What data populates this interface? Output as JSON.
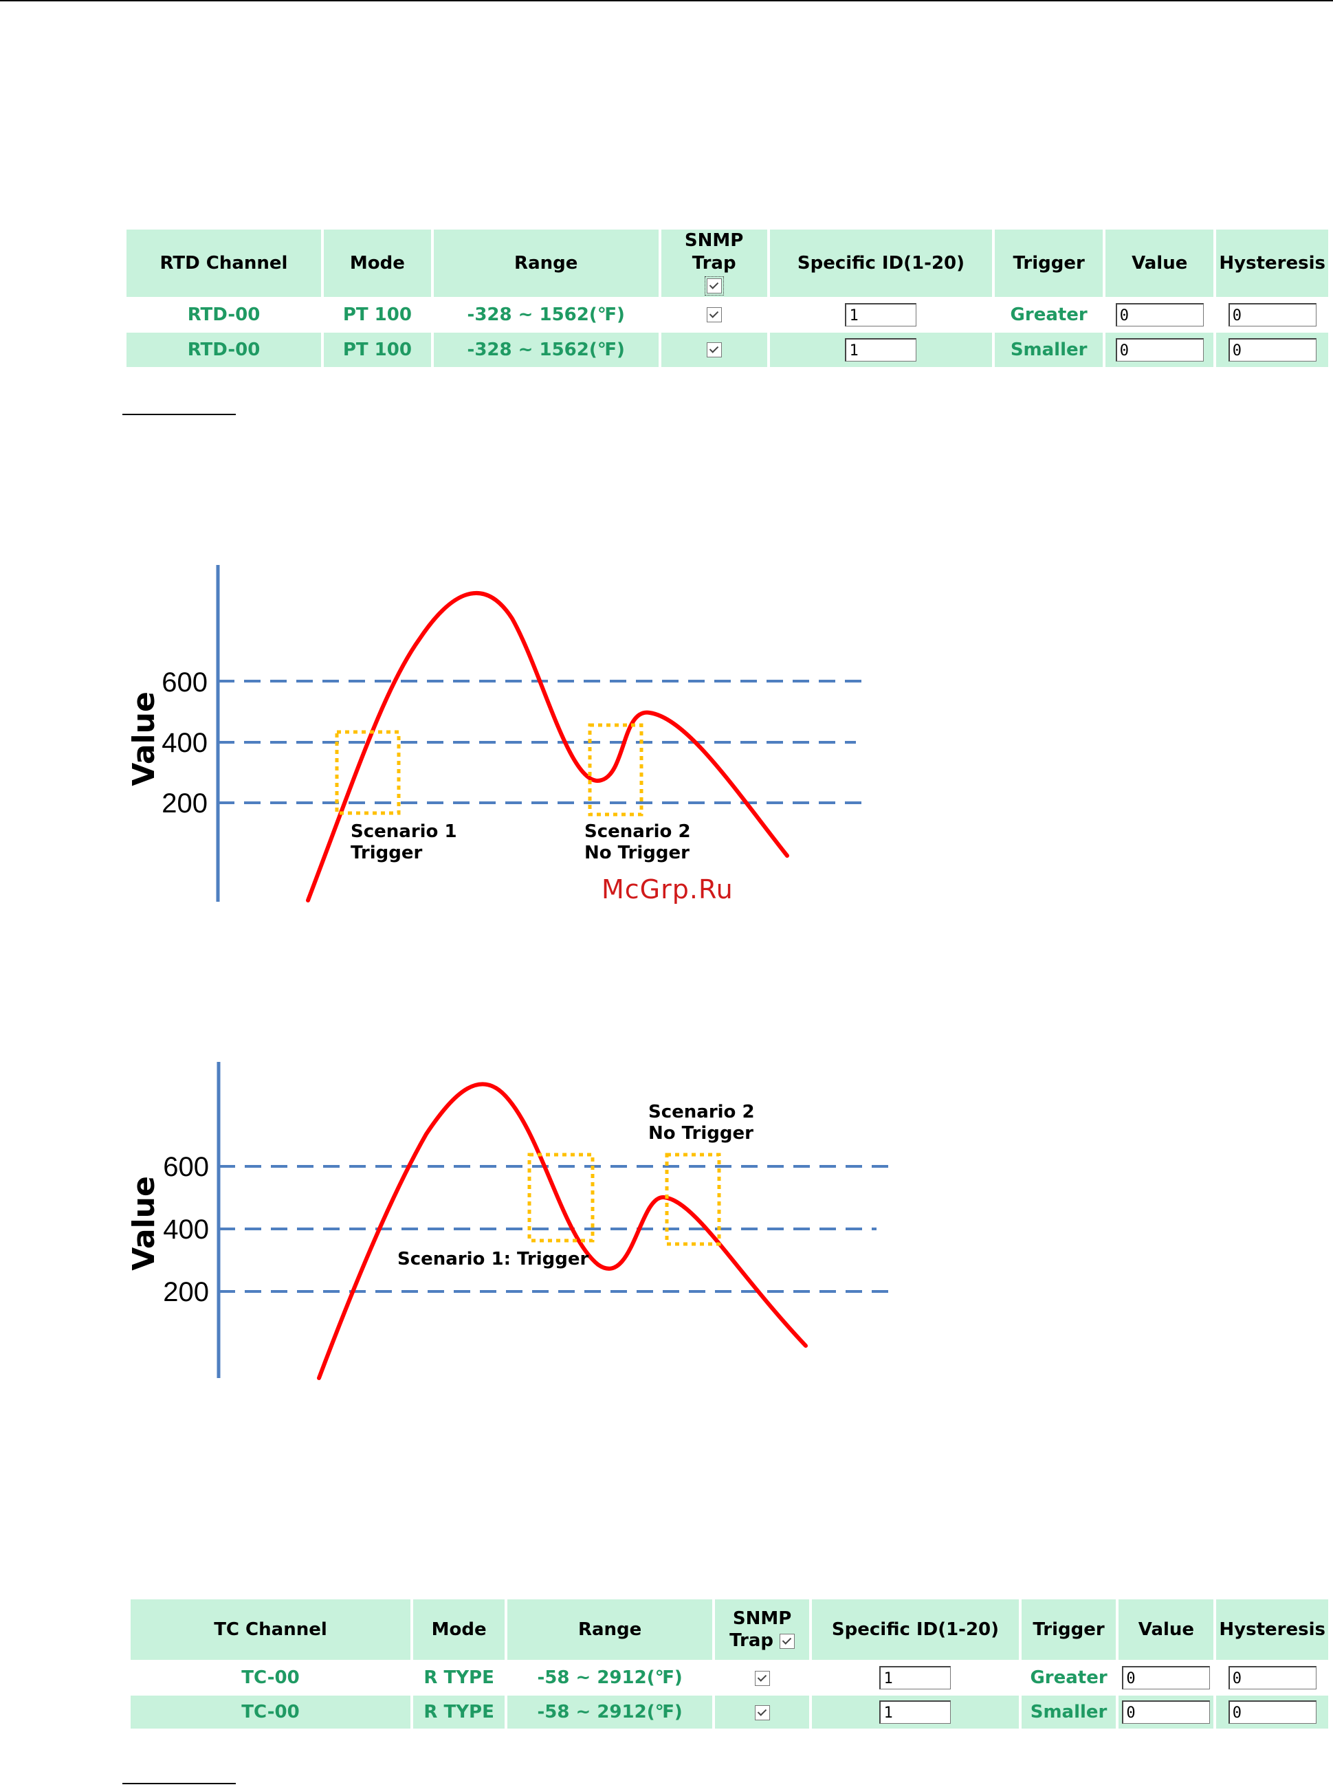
{
  "rtd_table": {
    "headers": {
      "channel": "RTD Channel",
      "mode": "Mode",
      "range": "Range",
      "snmp": "SNMP Trap",
      "specific_id": "Specific ID(1-20)",
      "trigger": "Trigger",
      "value": "Value",
      "hysteresis": "Hysteresis"
    },
    "rows": [
      {
        "channel": "RTD-00",
        "mode": "PT 100",
        "range": "-328 ~ 1562(℉)",
        "snmp_checked": true,
        "specific_id": "1",
        "trigger": "Greater",
        "value": "0",
        "hysteresis": "0"
      },
      {
        "channel": "RTD-00",
        "mode": "PT 100",
        "range": "-328 ~ 1562(℉)",
        "snmp_checked": true,
        "specific_id": "1",
        "trigger": "Smaller",
        "value": "0",
        "hysteresis": "0"
      }
    ]
  },
  "tc_table": {
    "headers": {
      "channel": "TC Channel",
      "mode": "Mode",
      "range": "Range",
      "snmp_line1": "SNMP",
      "snmp_line2": "Trap",
      "specific_id": "Specific ID(1-20)",
      "trigger": "Trigger",
      "value": "Value",
      "hysteresis": "Hysteresis"
    },
    "rows": [
      {
        "channel": "TC-00",
        "mode": "R TYPE",
        "range": "-58 ~ 2912(℉)",
        "snmp_checked": true,
        "specific_id": "1",
        "trigger": "Greater",
        "value": "0",
        "hysteresis": "0"
      },
      {
        "channel": "TC-00",
        "mode": "R TYPE",
        "range": "-58 ~ 2912(℉)",
        "snmp_checked": true,
        "specific_id": "1",
        "trigger": "Smaller",
        "value": "0",
        "hysteresis": "0"
      }
    ]
  },
  "watermark": "McGrp.Ru",
  "chart_data": [
    {
      "type": "line",
      "ylabel": "Value",
      "yticks": [
        600,
        400,
        200
      ],
      "thresholds": [
        600,
        400,
        200
      ],
      "annotations": [
        {
          "line1": "Scenario 1",
          "line2": "Trigger"
        },
        {
          "line1": "Scenario 2",
          "line2": "No Trigger"
        }
      ],
      "colors": {
        "axis": "#4f7fc0",
        "curve": "#ff0000",
        "threshold": "#4f7fc0",
        "box": "#ffc000"
      }
    },
    {
      "type": "line",
      "ylabel": "Value",
      "yticks": [
        600,
        400,
        200
      ],
      "thresholds": [
        600,
        400,
        200
      ],
      "annotations": [
        {
          "line1": "Scenario 1: Trigger",
          "line2": ""
        },
        {
          "line1": "Scenario 2",
          "line2": "No Trigger"
        }
      ],
      "colors": {
        "axis": "#4f7fc0",
        "curve": "#ff0000",
        "threshold": "#4f7fc0",
        "box": "#ffc000"
      }
    }
  ]
}
